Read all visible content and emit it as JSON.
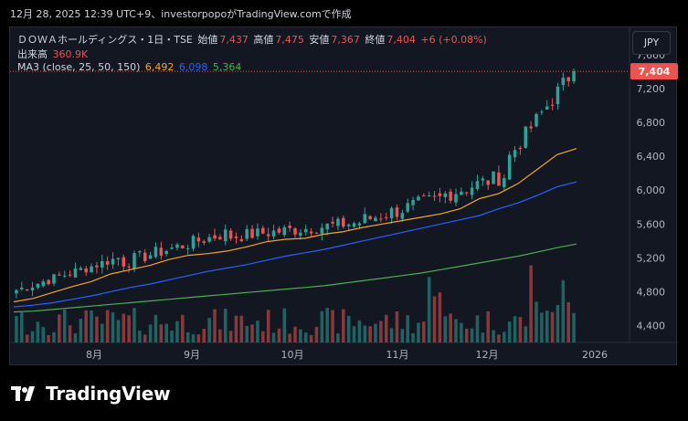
{
  "caption": "12月 28, 2025 12:39 UTC+9、investorpopoがTradingView.comで作成",
  "legend": {
    "title": "ＤＯＷＡホールディングス・1日・TSE",
    "open_label": "始値",
    "open": "7,437",
    "high_label": "高値",
    "high": "7,475",
    "low_label": "安値",
    "low": "7,367",
    "close_label": "終値",
    "close": "7,404",
    "change": "+6 (+0.08%)",
    "volume_label": "出来高",
    "volume": "360.9K",
    "ma_label": "MA3 (close, 25, 50, 150)",
    "ma25": "6,492",
    "ma50": "6,098",
    "ma150": "5,364"
  },
  "currency_button": "JPY",
  "price_badge": "7,404",
  "brand": "TradingView",
  "colors": {
    "up": "#26a69a",
    "down": "#ef5350",
    "ma25": "#f5a623",
    "ma50": "#2962ff",
    "ma150": "#4caf50"
  },
  "chart_data": {
    "type": "candlestick",
    "y_ticks": [
      "7,600",
      "7,200",
      "6,800",
      "6,400",
      "6,000",
      "5,600",
      "5,200",
      "4,800",
      "4,400"
    ],
    "x_ticks": [
      "8月",
      "9月",
      "10月",
      "11月",
      "12月",
      "2026"
    ],
    "ylim": [
      4200,
      7600
    ],
    "last_close": 7404,
    "series": [
      {
        "name": "MA 25",
        "values": [
          4680,
          4720,
          4790,
          4860,
          4920,
          5010,
          5060,
          5110,
          5180,
          5230,
          5250,
          5280,
          5330,
          5390,
          5420,
          5430,
          5480,
          5510,
          5560,
          5600,
          5640,
          5680,
          5720,
          5780,
          5900,
          5960,
          6080,
          6250,
          6420,
          6492
        ]
      },
      {
        "name": "MA 50",
        "values": [
          4620,
          4640,
          4670,
          4710,
          4750,
          4800,
          4850,
          4890,
          4940,
          4990,
          5040,
          5080,
          5120,
          5170,
          5220,
          5260,
          5300,
          5350,
          5400,
          5450,
          5500,
          5550,
          5600,
          5650,
          5700,
          5780,
          5850,
          5940,
          6040,
          6098
        ]
      },
      {
        "name": "MA 150",
        "values": [
          4560,
          4570,
          4590,
          4610,
          4630,
          4650,
          4670,
          4690,
          4710,
          4730,
          4750,
          4770,
          4790,
          4810,
          4830,
          4850,
          4870,
          4900,
          4930,
          4960,
          4990,
          5020,
          5060,
          5100,
          5140,
          5180,
          5220,
          5270,
          5320,
          5364
        ]
      }
    ]
  }
}
